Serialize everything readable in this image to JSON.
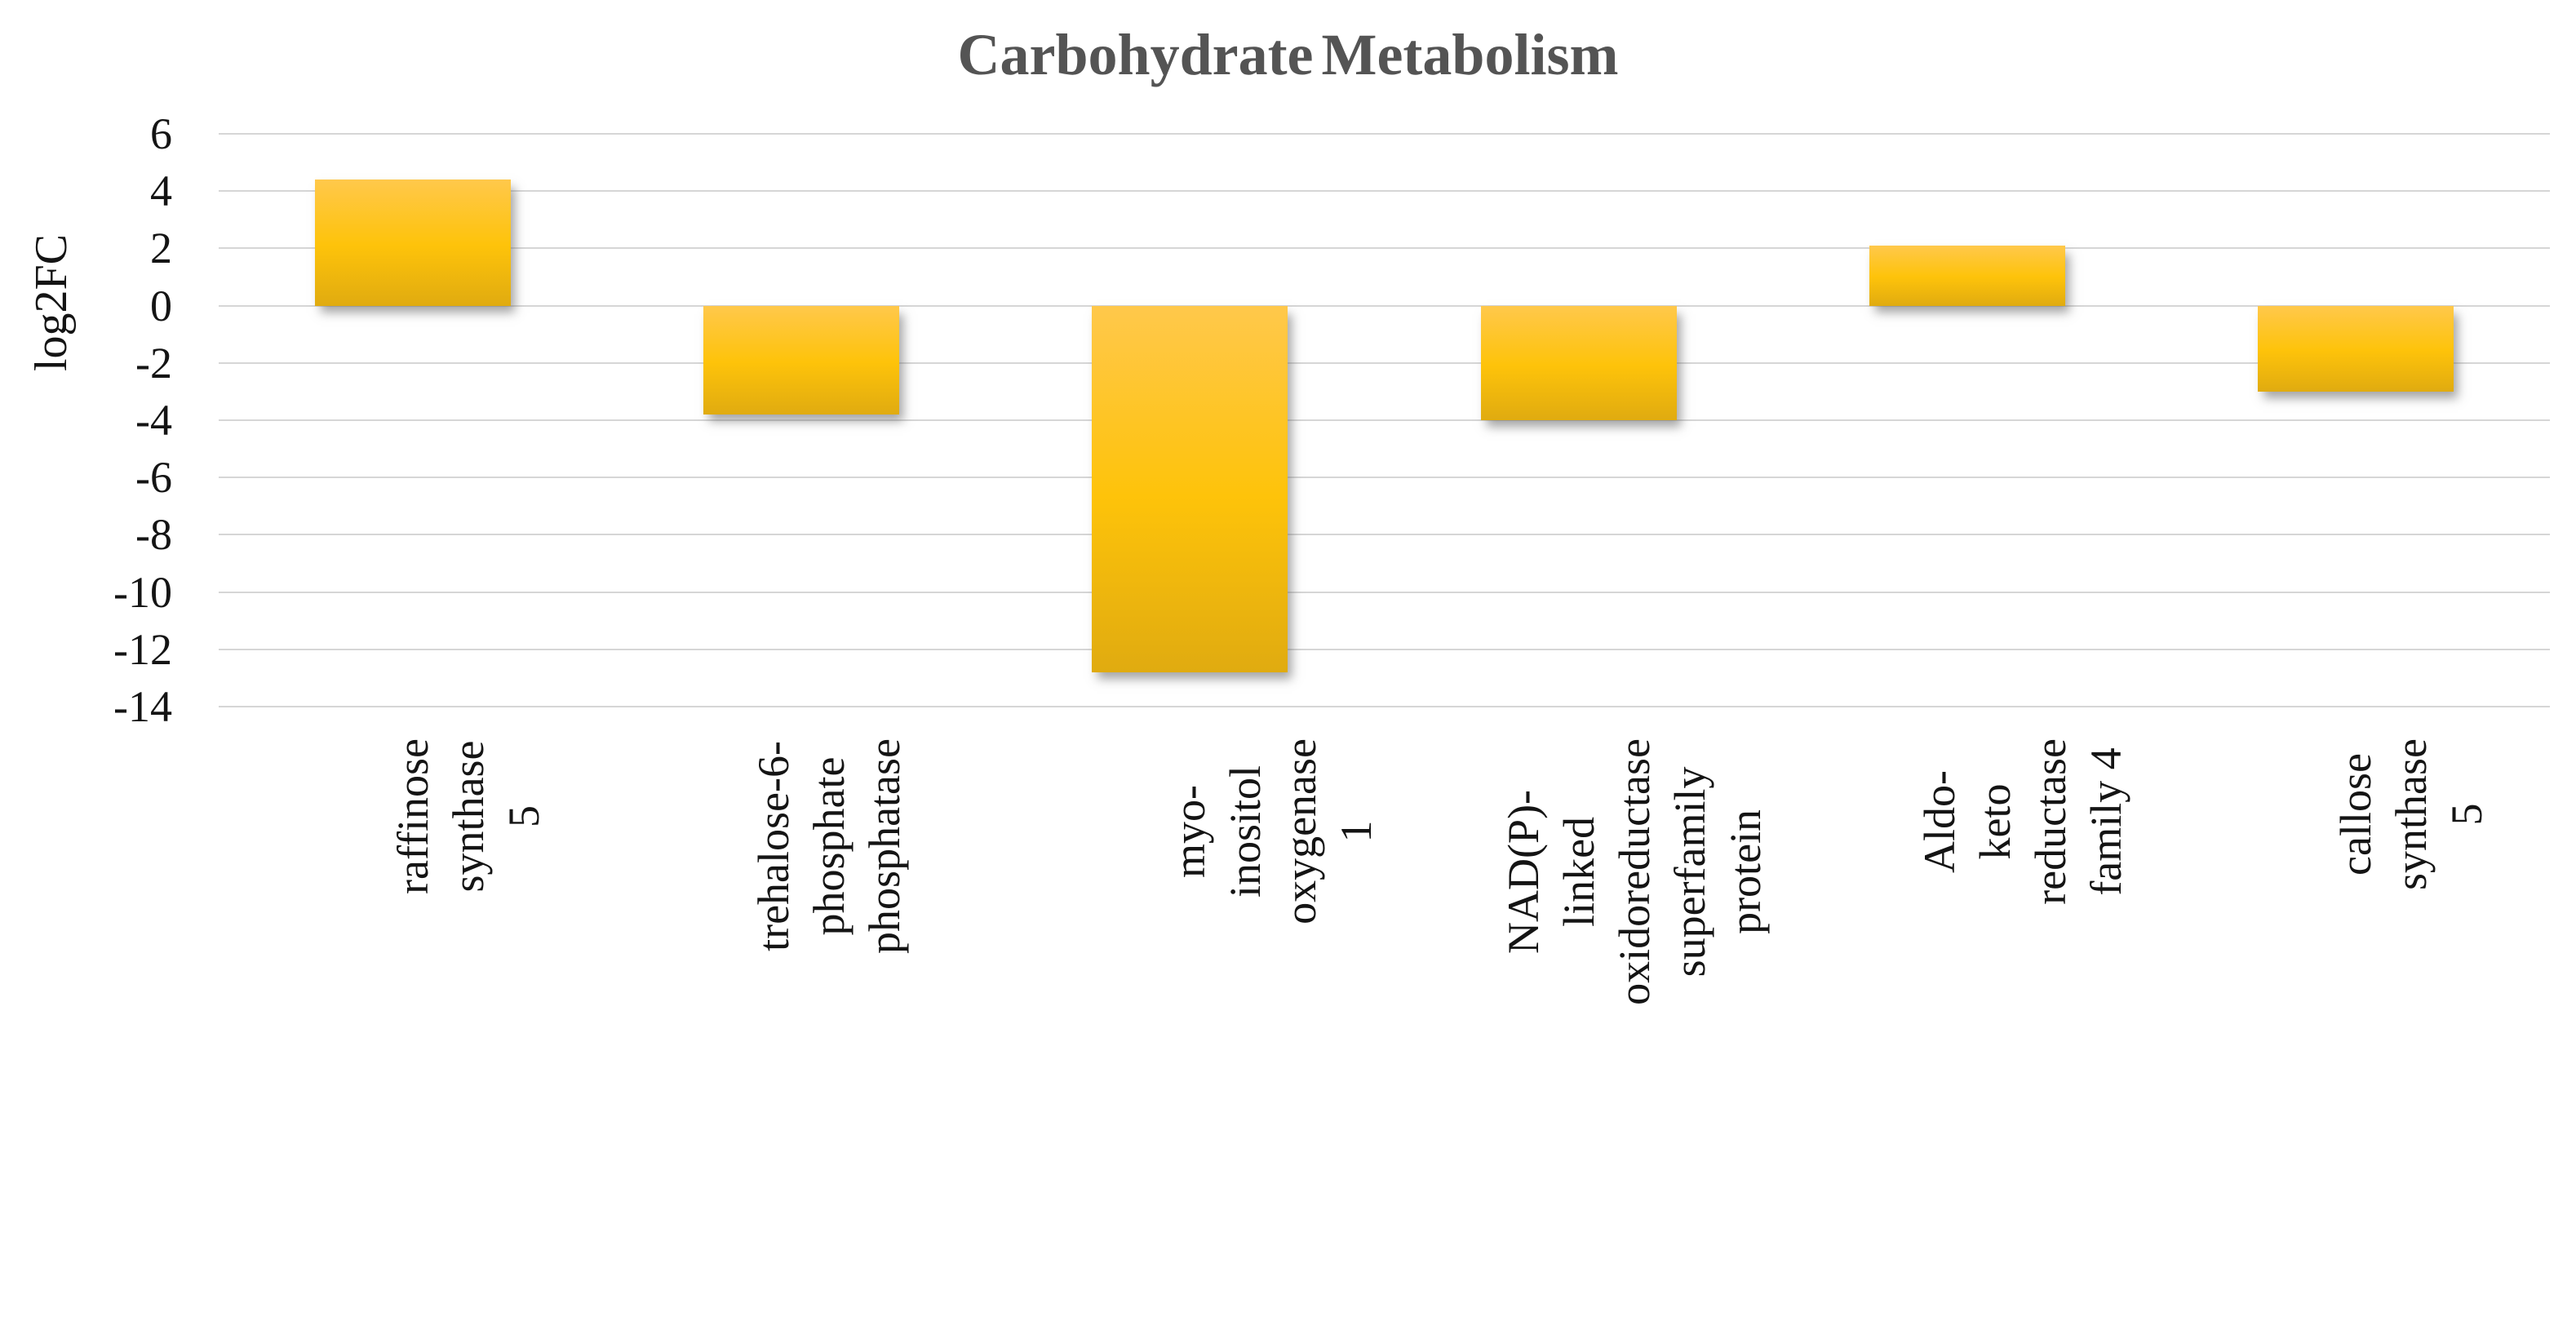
{
  "chart_data": {
    "type": "bar",
    "title": "Carbohydrate Metabolism",
    "xlabel": "",
    "ylabel": "log2FC",
    "categories": [
      "raffinose synthase 5",
      "trehalose-6-phosphate\nphosphatase",
      "myo-inositol oxygenase 1",
      "NAD(P)-linked\noxidoreductase\nsuperfamily protein",
      "Aldo-keto reductase\nfamily 4",
      "callose synthase 5"
    ],
    "values": [
      4.4,
      -3.8,
      -12.8,
      -4.0,
      2.1,
      -3.0
    ],
    "yticks": [
      6,
      4,
      2,
      0,
      -2,
      -4,
      -6,
      -8,
      -10,
      -12,
      -14
    ],
    "ylim": [
      -14,
      6
    ],
    "grid": "horizontal-only",
    "legend": "none",
    "colors": {
      "bar_gradient_top": "#FFC84B",
      "bar_gradient_mid": "#FEC30A",
      "bar_gradient_bottom": "#E0AB10",
      "bar_base": "#FFC000",
      "gridline": "#D6D6D6",
      "title_text": "#545454",
      "axis_text": "#141414"
    }
  }
}
